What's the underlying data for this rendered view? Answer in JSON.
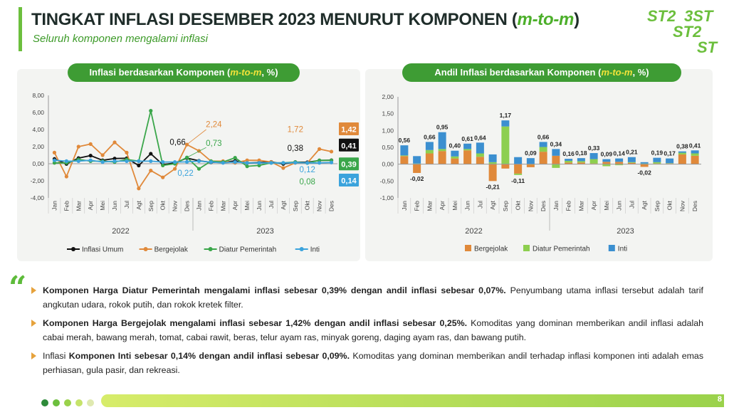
{
  "header": {
    "title": "TINGKAT INFLASI DESEMBER 2023 MENURUT KOMPONEN (",
    "title_mtm": "m-to-m",
    "title_end": ")",
    "subtitle": "Seluruh komponen mengalami inflasi"
  },
  "chart_data": [
    {
      "type": "line",
      "title": "Inflasi berdasarkan Komponen (",
      "title_mtm": "m-to-m",
      "title_unit": ", %)",
      "categories": [
        "Jan",
        "Feb",
        "Mar",
        "Apr",
        "Mei",
        "Jun",
        "Jul",
        "Agt",
        "Sep",
        "Okt",
        "Nov",
        "Des",
        "Jan",
        "Feb",
        "Mar",
        "Apr",
        "Mei",
        "Jun",
        "Jul",
        "Agt",
        "Sep",
        "Okt",
        "Nov",
        "Des"
      ],
      "years": [
        "2022",
        "2023"
      ],
      "ylim": [
        -4,
        8
      ],
      "yticks": [
        "8,00",
        "6,00",
        "4,00",
        "2,00",
        "0,00",
        "-2,00",
        "-4,00"
      ],
      "grid": false,
      "legend": "bottom",
      "series": [
        {
          "name": "Inflasi Umum",
          "color": "#111111",
          "values": [
            0.56,
            -0.02,
            0.66,
            0.95,
            0.4,
            0.61,
            0.64,
            -0.21,
            1.17,
            -0.11,
            0.09,
            0.66,
            0.34,
            0.16,
            0.18,
            0.33,
            0.09,
            0.14,
            0.21,
            -0.02,
            0.19,
            0.17,
            0.38,
            0.41
          ]
        },
        {
          "name": "Bergejolak",
          "color": "#e0893a",
          "values": [
            1.3,
            -1.5,
            2.0,
            2.3,
            1.0,
            2.5,
            1.3,
            -2.9,
            -0.8,
            -1.6,
            -0.6,
            2.24,
            1.5,
            0.3,
            0.3,
            0.1,
            0.4,
            0.4,
            0.2,
            -0.5,
            0.1,
            0.1,
            1.72,
            1.42
          ]
        },
        {
          "name": "Diatur Pemerintah",
          "color": "#3aa64a",
          "values": [
            0.1,
            0.1,
            0.5,
            0.3,
            0.3,
            0.2,
            0.5,
            0.3,
            6.2,
            -0.2,
            0.0,
            0.73,
            -0.6,
            0.3,
            0.2,
            0.7,
            -0.3,
            -0.2,
            0.1,
            0.1,
            0.2,
            0.08,
            0.4,
            0.39
          ]
        },
        {
          "name": "Inti",
          "color": "#3ba3dc",
          "values": [
            0.4,
            0.3,
            0.3,
            0.4,
            0.2,
            0.3,
            0.3,
            0.3,
            0.3,
            0.2,
            0.2,
            0.22,
            0.3,
            0.2,
            0.1,
            0.2,
            0.1,
            0.1,
            0.1,
            0.1,
            0.12,
            0.1,
            0.1,
            0.14
          ]
        }
      ],
      "annotations": {
        "umum_des22": "0,66",
        "bergejolak_des22": "2,24",
        "diatur_des22": "0,73",
        "inti_des22": "0,22",
        "bergejolak_nov23": "1,72",
        "umum_sep23": "0,38",
        "inti_sep23": "0,12",
        "diatur_sep23": "0,08",
        "badge_bergejolak": "1,42",
        "badge_umum": "0,41",
        "badge_diatur": "0,39",
        "badge_inti": "0,14"
      }
    },
    {
      "type": "bar",
      "stacked": true,
      "title": "Andil Inflasi berdasarkan Komponen (",
      "title_mtm": "m-to-m",
      "title_unit": ", %)",
      "categories": [
        "Jan",
        "Feb",
        "Mar",
        "Apr",
        "Mei",
        "Jun",
        "Jul",
        "Agt",
        "Sep",
        "Okt",
        "Nov",
        "Des",
        "Jan",
        "Feb",
        "Mar",
        "Apr",
        "Mei",
        "Jun",
        "Jul",
        "Agt",
        "Sep",
        "Okt",
        "Nov",
        "Des"
      ],
      "years": [
        "2022",
        "2023"
      ],
      "ylim": [
        -1,
        2
      ],
      "yticks": [
        "2,00",
        "1,50",
        "1,00",
        "0,50",
        "0,00",
        "-0,50",
        "-1,00"
      ],
      "legend": "bottom",
      "series": [
        {
          "name": "Bergejolak",
          "color": "#e0893a",
          "values": [
            0.24,
            -0.26,
            0.32,
            0.39,
            0.17,
            0.41,
            0.22,
            -0.5,
            -0.13,
            -0.28,
            -0.09,
            0.37,
            0.25,
            0.05,
            0.05,
            0.02,
            0.07,
            0.07,
            0.04,
            -0.08,
            0.02,
            0.02,
            0.29,
            0.25
          ]
        },
        {
          "name": "Diatur Pemerintah",
          "color": "#8dcf4f",
          "values": [
            0.02,
            0.02,
            0.1,
            0.06,
            0.06,
            0.04,
            0.1,
            0.06,
            1.12,
            -0.04,
            0.0,
            0.14,
            -0.11,
            0.05,
            0.04,
            0.13,
            -0.06,
            -0.03,
            0.02,
            0.02,
            0.04,
            0.01,
            0.05,
            0.07
          ]
        },
        {
          "name": "Inti",
          "color": "#3b8fd0",
          "values": [
            0.3,
            0.22,
            0.24,
            0.5,
            0.17,
            0.16,
            0.32,
            0.23,
            0.18,
            0.21,
            0.18,
            0.15,
            0.2,
            0.06,
            0.09,
            0.18,
            0.08,
            0.1,
            0.15,
            0.04,
            0.13,
            0.14,
            0.04,
            0.09
          ]
        }
      ],
      "totals": [
        "0,56",
        "-0,02",
        "0,66",
        "0,95",
        "0,40",
        "0,61",
        "0,64",
        "-0,21",
        "1,17",
        "-0,11",
        "0,09",
        "0,66",
        "0,34",
        "0,16",
        "0,18",
        "0,33",
        "0,09",
        "0,14",
        "0,21",
        "-0,02",
        "0,19",
        "0,17",
        "0,38",
        "0,41"
      ],
      "total_values": [
        0.56,
        -0.02,
        0.66,
        0.95,
        0.4,
        0.61,
        0.64,
        -0.21,
        1.17,
        -0.11,
        0.09,
        0.66,
        0.34,
        0.16,
        0.18,
        0.33,
        0.09,
        0.14,
        0.21,
        -0.02,
        0.19,
        0.17,
        0.38,
        0.41
      ]
    }
  ],
  "bullets": [
    {
      "bold": "Komponen Harga Diatur Pemerintah mengalami inflasi sebesar 0,39% dengan andil inflasi sebesar 0,07%.",
      "text": " Penyumbang utama inflasi tersebut adalah tarif angkutan udara, rokok putih, dan rokok kretek filter."
    },
    {
      "bold": "Komponen Harga Bergejolak mengalami inflasi sebesar 1,42% dengan andil inflasi sebesar 0,25%.",
      "text": " Komoditas yang dominan memberikan andil inflasi adalah cabai merah, bawang merah, tomat, cabai rawit, beras, telur ayam ras, minyak goreng, daging ayam ras, dan bawang putih."
    },
    {
      "pre": "Inflasi ",
      "bold": "Komponen Inti sebesar 0,14% dengan andil inflasi sebesar 0,09%.",
      "text": " Komoditas yang dominan memberikan andil terhadap inflasi komponen inti adalah emas perhiasan, gula pasir, dan rekreasi."
    }
  ],
  "footer": {
    "page_number": "8",
    "dot_colors": [
      "#2e8b3a",
      "#6cbf3d",
      "#9ad24b",
      "#c6e36a",
      "#dfe9b0"
    ]
  },
  "colors": {
    "accent": "#3e9c34",
    "title": "#1f2d2a"
  }
}
